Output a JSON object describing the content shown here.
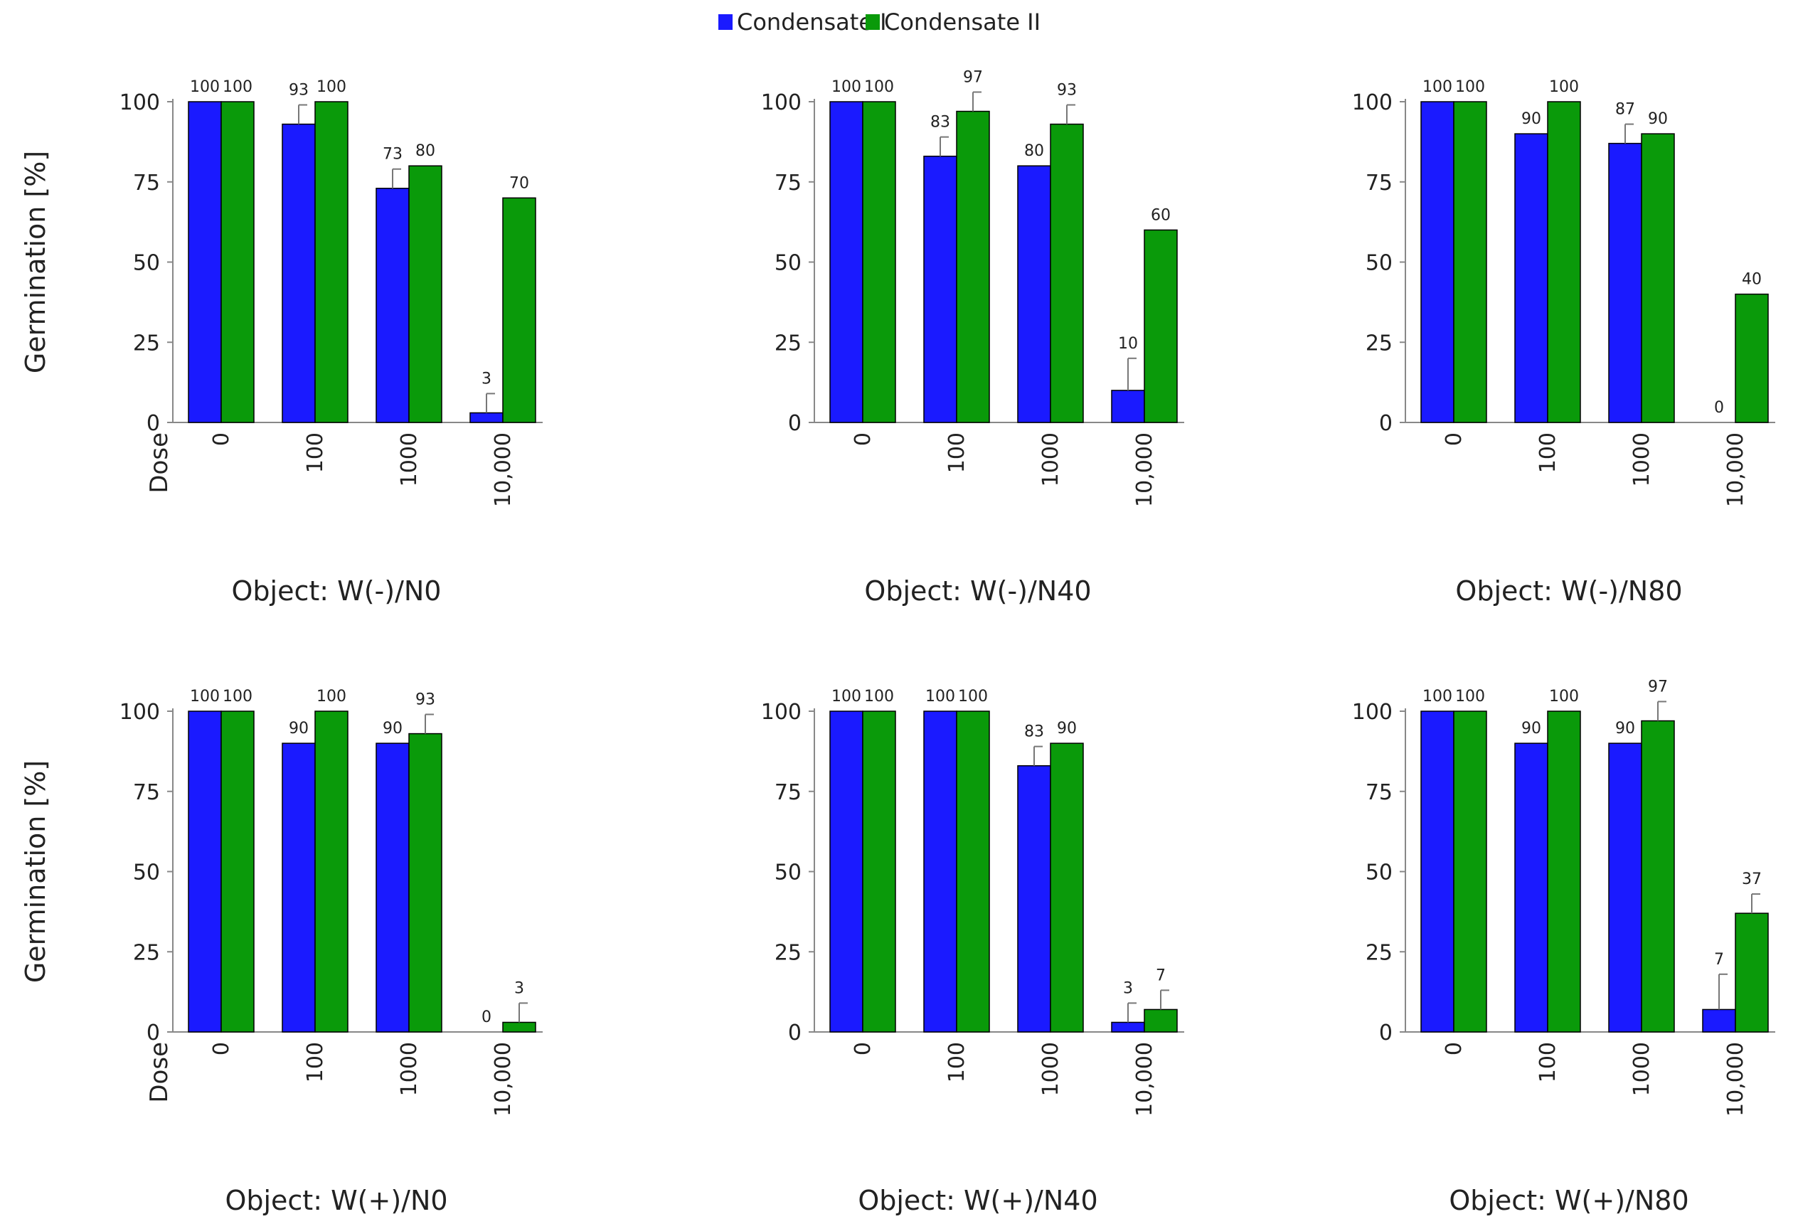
{
  "legend": [
    {
      "name": "Condensate I",
      "color": "#1a1aff"
    },
    {
      "name": "Condensate II",
      "color": "#0a9a0a"
    }
  ],
  "shared_labels": {
    "ylabel": "Germination  [%]",
    "dose_label": "Dose"
  },
  "chart_data": [
    {
      "type": "bar",
      "title": "Object: W(-)/N0",
      "xlabel": "Dose",
      "ylabel": "Germination  [%]",
      "ylim": [
        0,
        100
      ],
      "yticks": [
        "0",
        "25",
        "50",
        "75",
        "100"
      ],
      "categories": [
        "0",
        "100",
        "1000",
        "10,000"
      ],
      "series": [
        {
          "name": "Condensate I",
          "values": [
            100,
            93,
            73,
            3
          ],
          "errors": [
            0,
            6,
            6,
            6
          ],
          "labels": [
            "100",
            "93",
            "73",
            "3"
          ]
        },
        {
          "name": "Condensate II",
          "values": [
            100,
            100,
            80,
            70
          ],
          "errors": [
            0,
            0,
            0,
            0
          ],
          "labels": [
            "100",
            "100",
            "80",
            "70"
          ]
        }
      ]
    },
    {
      "type": "bar",
      "title": "Object: W(-)/N40",
      "xlabel": "",
      "ylabel": "",
      "ylim": [
        0,
        100
      ],
      "yticks": [
        "0",
        "25",
        "50",
        "75",
        "100"
      ],
      "categories": [
        "0",
        "100",
        "1000",
        "10,000"
      ],
      "series": [
        {
          "name": "Condensate I",
          "values": [
            100,
            83,
            80,
            10
          ],
          "errors": [
            0,
            6,
            0,
            10
          ],
          "labels": [
            "100",
            "83",
            "80",
            "10"
          ]
        },
        {
          "name": "Condensate II",
          "values": [
            100,
            97,
            93,
            60
          ],
          "errors": [
            0,
            6,
            6,
            0
          ],
          "labels": [
            "100",
            "97",
            "93",
            "60"
          ]
        }
      ]
    },
    {
      "type": "bar",
      "title": "Object: W(-)/N80",
      "xlabel": "",
      "ylabel": "",
      "ylim": [
        0,
        100
      ],
      "yticks": [
        "0",
        "25",
        "50",
        "75",
        "100"
      ],
      "categories": [
        "0",
        "100",
        "1000",
        "10,000"
      ],
      "series": [
        {
          "name": "Condensate I",
          "values": [
            100,
            90,
            87,
            0
          ],
          "errors": [
            0,
            0,
            6,
            0
          ],
          "labels": [
            "100",
            "90",
            "87",
            "0"
          ]
        },
        {
          "name": "Condensate II",
          "values": [
            100,
            100,
            90,
            40
          ],
          "errors": [
            0,
            0,
            0,
            0
          ],
          "labels": [
            "100",
            "100",
            "90",
            "40"
          ]
        }
      ]
    },
    {
      "type": "bar",
      "title": "Object: W(+)/N0",
      "xlabel": "Dose",
      "ylabel": "Germination  [%]",
      "ylim": [
        0,
        100
      ],
      "yticks": [
        "0",
        "25",
        "50",
        "75",
        "100"
      ],
      "categories": [
        "0",
        "100",
        "1000",
        "10,000"
      ],
      "series": [
        {
          "name": "Condensate I",
          "values": [
            100,
            90,
            90,
            0
          ],
          "errors": [
            0,
            0,
            0,
            0
          ],
          "labels": [
            "100",
            "90",
            "90",
            "0"
          ]
        },
        {
          "name": "Condensate II",
          "values": [
            100,
            100,
            93,
            3
          ],
          "errors": [
            0,
            0,
            6,
            6
          ],
          "labels": [
            "100",
            "100",
            "93",
            "3"
          ]
        }
      ]
    },
    {
      "type": "bar",
      "title": "Object: W(+)/N40",
      "xlabel": "",
      "ylabel": "",
      "ylim": [
        0,
        100
      ],
      "yticks": [
        "0",
        "25",
        "50",
        "75",
        "100"
      ],
      "categories": [
        "0",
        "100",
        "1000",
        "10,000"
      ],
      "series": [
        {
          "name": "Condensate I",
          "values": [
            100,
            100,
            83,
            3
          ],
          "errors": [
            0,
            0,
            6,
            6
          ],
          "labels": [
            "100",
            "100",
            "83",
            "3"
          ]
        },
        {
          "name": "Condensate II",
          "values": [
            100,
            100,
            90,
            7
          ],
          "errors": [
            0,
            0,
            0,
            6
          ],
          "labels": [
            "100",
            "100",
            "90",
            "7"
          ]
        }
      ]
    },
    {
      "type": "bar",
      "title": "Object: W(+)/N80",
      "xlabel": "",
      "ylabel": "",
      "ylim": [
        0,
        100
      ],
      "yticks": [
        "0",
        "25",
        "50",
        "75",
        "100"
      ],
      "categories": [
        "0",
        "100",
        "1000",
        "10,000"
      ],
      "series": [
        {
          "name": "Condensate I",
          "values": [
            100,
            90,
            90,
            7
          ],
          "errors": [
            0,
            0,
            0,
            11
          ],
          "labels": [
            "100",
            "90",
            "90",
            "7"
          ]
        },
        {
          "name": "Condensate II",
          "values": [
            100,
            100,
            97,
            37
          ],
          "errors": [
            0,
            0,
            6,
            6
          ],
          "labels": [
            "100",
            "100",
            "97",
            "37"
          ]
        }
      ]
    }
  ]
}
